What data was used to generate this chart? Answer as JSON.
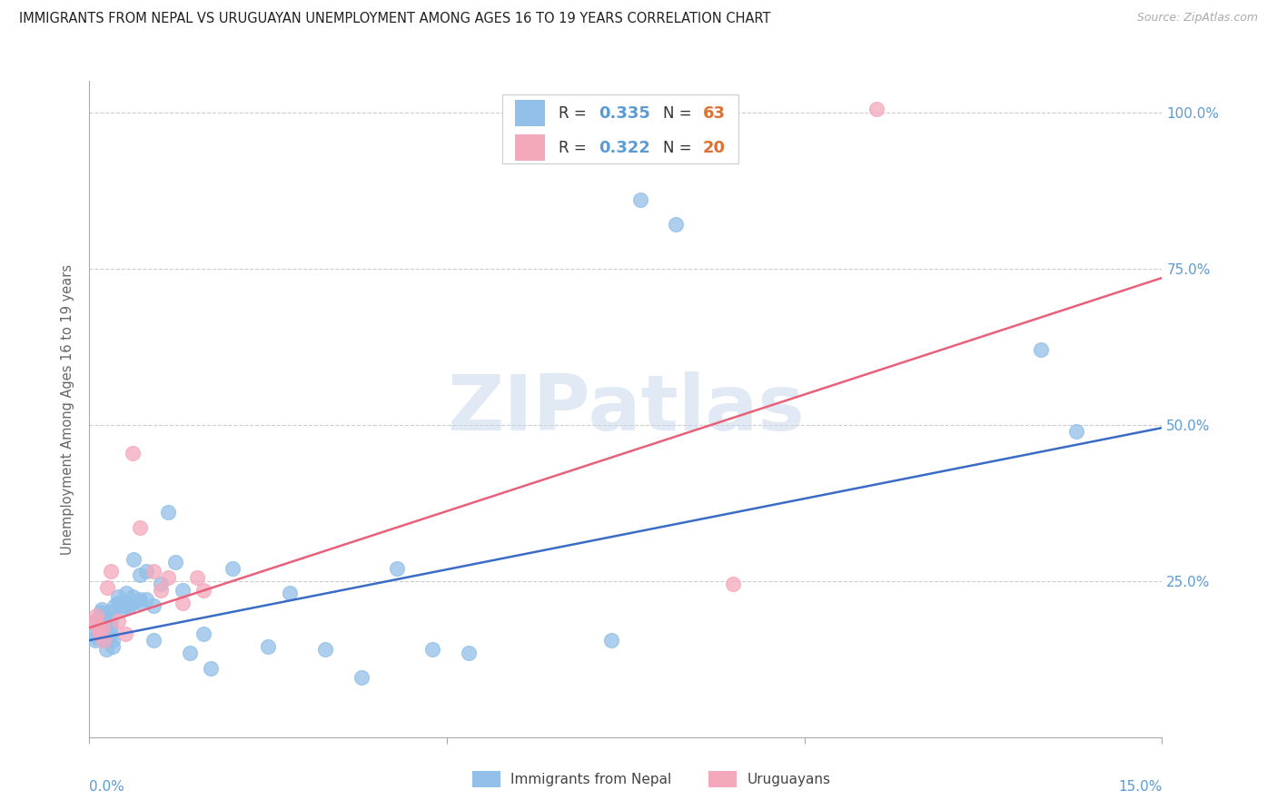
{
  "title": "IMMIGRANTS FROM NEPAL VS URUGUAYAN UNEMPLOYMENT AMONG AGES 16 TO 19 YEARS CORRELATION CHART",
  "source": "Source: ZipAtlas.com",
  "ylabel": "Unemployment Among Ages 16 to 19 years",
  "legend_label_blue": "Immigrants from Nepal",
  "legend_label_pink": "Uruguayans",
  "watermark_text": "ZIPatlas",
  "blue_color": "#92C0E8",
  "pink_color": "#F4A8BC",
  "blue_line_color": "#3B6CC5",
  "pink_line_color": "#E8607A",
  "title_color": "#222222",
  "axis_label_color": "#5B9BD5",
  "ylabel_color": "#666666",
  "background_color": "#FFFFFF",
  "xmin": 0.0,
  "xmax": 0.15,
  "ymin": 0.0,
  "ymax": 1.05,
  "blue_line_y0": 0.155,
  "blue_line_y1": 0.495,
  "pink_line_y0": 0.175,
  "pink_line_y1": 0.735,
  "blue_points_x": [
    0.0008,
    0.0009,
    0.001,
    0.001,
    0.0012,
    0.0013,
    0.0015,
    0.0015,
    0.0016,
    0.0017,
    0.0018,
    0.002,
    0.002,
    0.0022,
    0.0022,
    0.0023,
    0.0025,
    0.0025,
    0.0027,
    0.003,
    0.003,
    0.003,
    0.0032,
    0.0033,
    0.0035,
    0.004,
    0.004,
    0.0042,
    0.0045,
    0.005,
    0.005,
    0.0052,
    0.0055,
    0.006,
    0.006,
    0.0062,
    0.007,
    0.007,
    0.0072,
    0.008,
    0.008,
    0.009,
    0.009,
    0.01,
    0.011,
    0.012,
    0.013,
    0.014,
    0.016,
    0.017,
    0.02,
    0.025,
    0.028,
    0.033,
    0.038,
    0.043,
    0.048,
    0.053,
    0.073,
    0.077,
    0.082,
    0.133,
    0.138
  ],
  "blue_points_y": [
    0.155,
    0.16,
    0.17,
    0.185,
    0.175,
    0.165,
    0.18,
    0.19,
    0.2,
    0.205,
    0.195,
    0.185,
    0.175,
    0.165,
    0.155,
    0.14,
    0.19,
    0.18,
    0.2,
    0.185,
    0.175,
    0.165,
    0.155,
    0.145,
    0.21,
    0.215,
    0.225,
    0.21,
    0.205,
    0.215,
    0.21,
    0.23,
    0.21,
    0.215,
    0.225,
    0.285,
    0.22,
    0.26,
    0.215,
    0.265,
    0.22,
    0.21,
    0.155,
    0.245,
    0.36,
    0.28,
    0.235,
    0.135,
    0.165,
    0.11,
    0.27,
    0.145,
    0.23,
    0.14,
    0.095,
    0.27,
    0.14,
    0.135,
    0.155,
    0.86,
    0.82,
    0.62,
    0.49
  ],
  "pink_points_x": [
    0.0008,
    0.001,
    0.0012,
    0.0015,
    0.0018,
    0.002,
    0.0025,
    0.003,
    0.004,
    0.005,
    0.006,
    0.007,
    0.009,
    0.01,
    0.011,
    0.013,
    0.015,
    0.016,
    0.09,
    0.11
  ],
  "pink_points_y": [
    0.185,
    0.195,
    0.175,
    0.165,
    0.175,
    0.155,
    0.24,
    0.265,
    0.185,
    0.165,
    0.455,
    0.335,
    0.265,
    0.235,
    0.255,
    0.215,
    0.255,
    0.235,
    0.245,
    1.005
  ]
}
